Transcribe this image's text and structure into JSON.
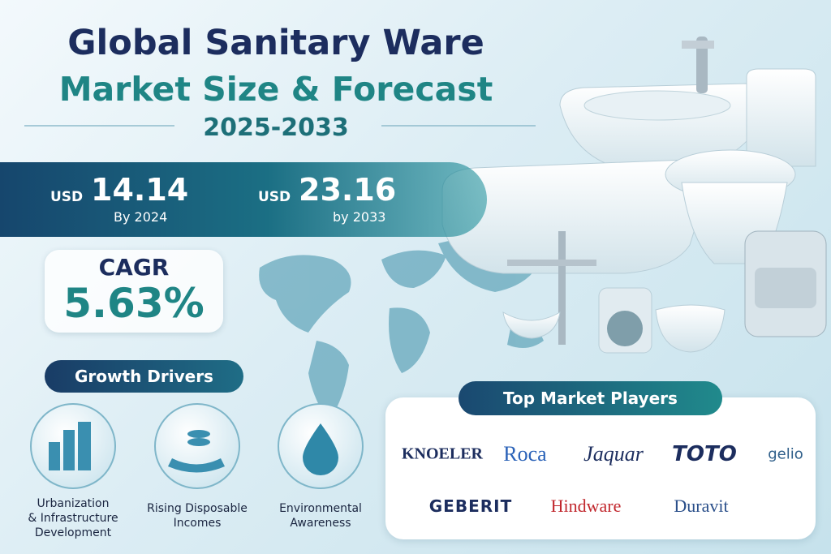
{
  "header": {
    "title_line1": "Global Sanitary Ware",
    "title_line2": "Market Size & Forecast",
    "years": "2025-2033"
  },
  "market_size": {
    "start": {
      "currency": "USD",
      "value": "14.14",
      "label": "By 2024"
    },
    "end": {
      "currency": "USD",
      "value": "23.16",
      "label": "by 2033"
    }
  },
  "cagr": {
    "label": "CAGR",
    "value": "5.63%"
  },
  "growth_drivers": {
    "title": "Growth Drivers",
    "items": [
      "Urbanization\n& Infrastructure\nDevelopment",
      "Rising Disposable\nIncomes",
      "Environmental\nAwareness"
    ]
  },
  "top_players": {
    "title": "Top Market Players",
    "companies": [
      "KNOELER",
      "Roca",
      "Jaquar",
      "TOTO",
      "gelio",
      "GEBERIT",
      "Hindware",
      "Duravit"
    ]
  }
}
